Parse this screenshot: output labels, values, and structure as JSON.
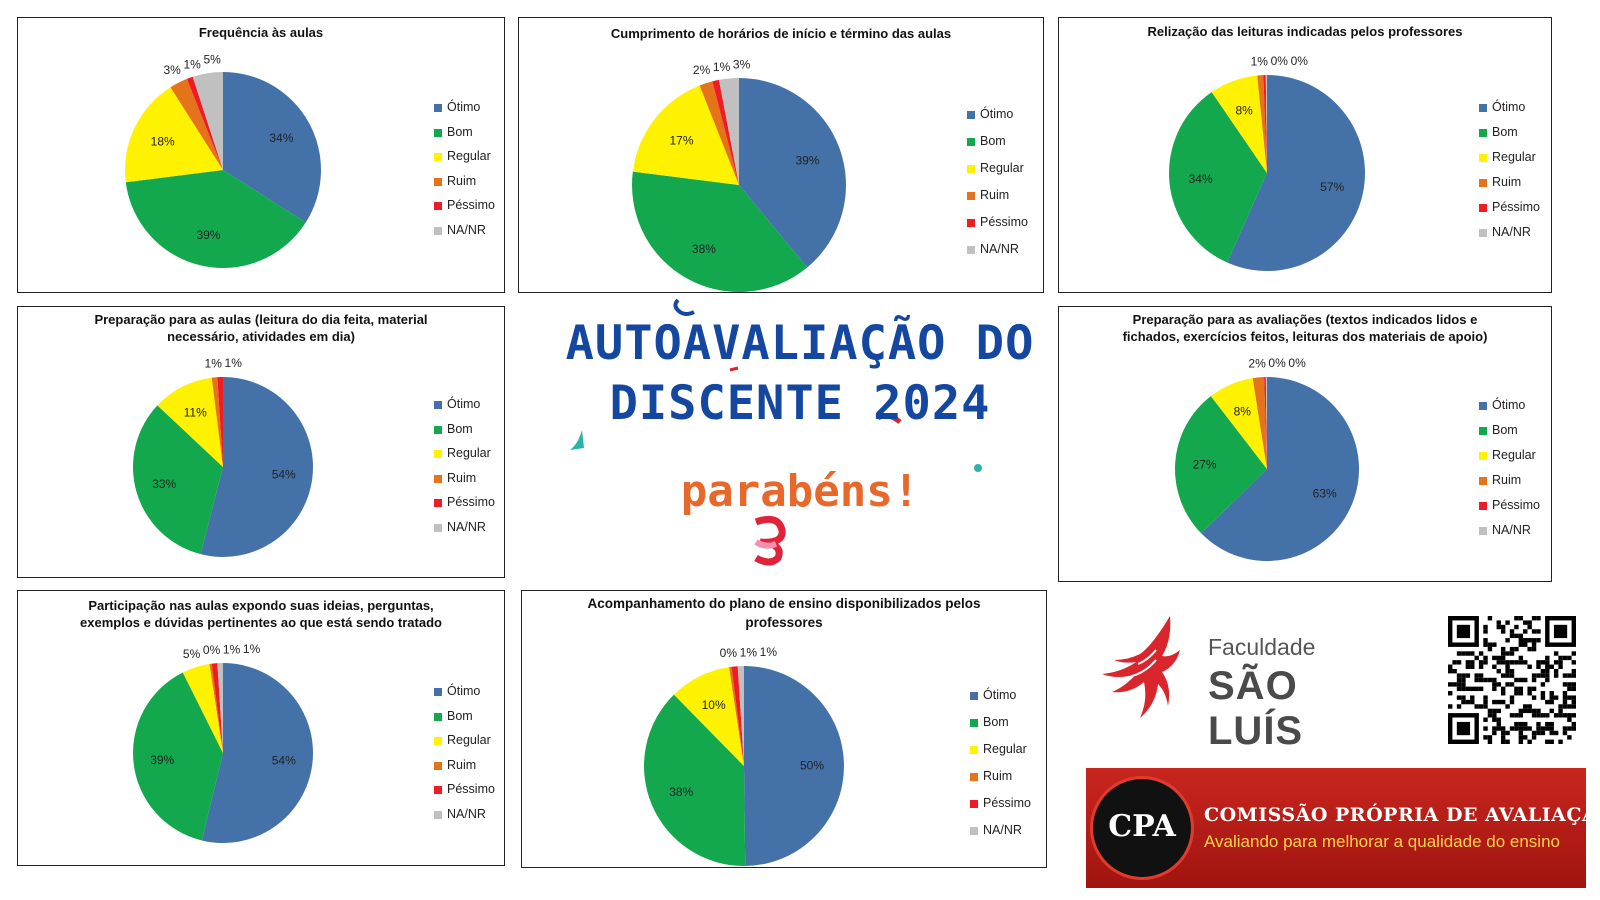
{
  "colors": {
    "otimo": "#4472a8",
    "bom": "#13a84e",
    "regular": "#fff200",
    "ruim": "#e4731b",
    "pessimo": "#ee1c24",
    "na_nr": "#c0c0c0"
  },
  "legend_labels": [
    "Ótimo",
    "Bom",
    "Regular",
    "Ruim",
    "Péssimo",
    "NA/NR"
  ],
  "center": {
    "title_line1": "AUTOAVALIAÇÃO DO",
    "title_line2": "DISCENTE 2024",
    "subtitle": "parabéns!"
  },
  "logo": {
    "line1": "Faculdade",
    "line2": "SÃO LUÍS"
  },
  "cpa": {
    "letters": "CPA",
    "name": "COMISSÃO PRÓPRIA DE AVALIAÇÃO",
    "tagline": "Avaliando para melhorar a qualidade do ensino"
  },
  "chart_data": [
    {
      "type": "pie",
      "title_lines": [
        "Frequência às aulas"
      ],
      "categories": [
        "Ótimo",
        "Bom",
        "Regular",
        "Ruim",
        "Péssimo",
        "NA/NR"
      ],
      "values": [
        34,
        39,
        18,
        3,
        1,
        5
      ],
      "labels": [
        "34%",
        "39%",
        "18%",
        "3%",
        "1%",
        "5%"
      ],
      "legend": "right"
    },
    {
      "type": "pie",
      "title_lines": [
        "Cumprimento de horários de início e término das aulas"
      ],
      "categories": [
        "Ótimo",
        "Bom",
        "Regular",
        "Ruim",
        "Péssimo",
        "NA/NR"
      ],
      "values": [
        39,
        38,
        17,
        2,
        1,
        3
      ],
      "labels": [
        "39%",
        "38%",
        "17%",
        "2%",
        "1%",
        "3%"
      ],
      "legend": "right"
    },
    {
      "type": "pie",
      "title_lines": [
        "Relização das leituras indicadas pelos professores"
      ],
      "categories": [
        "Ótimo",
        "Bom",
        "Regular",
        "Ruim",
        "Péssimo",
        "NA/NR"
      ],
      "values": [
        57,
        34,
        8,
        1,
        0.4,
        0.2
      ],
      "labels": [
        "57%",
        "34%",
        "8%",
        "1%",
        "0%",
        "0%"
      ],
      "legend": "right"
    },
    {
      "type": "pie",
      "title_lines": [
        "Preparação para as aulas (leitura do dia feita, material",
        "necessário, atividades em dia)"
      ],
      "categories": [
        "Ótimo",
        "Bom",
        "Regular",
        "Ruim",
        "Péssimo",
        "NA/NR"
      ],
      "values": [
        54,
        33,
        11,
        1,
        1,
        0
      ],
      "labels": [
        "54%",
        "33%",
        "11%",
        "1%",
        "1%",
        ""
      ],
      "legend": "right"
    },
    {
      "type": "pie",
      "title_lines": [
        "Preparação para as avaliações (textos indicados lidos e",
        "fichados, exercícios feitos, leituras dos materiais de apoio)"
      ],
      "categories": [
        "Ótimo",
        "Bom",
        "Regular",
        "Ruim",
        "Péssimo",
        "NA/NR"
      ],
      "values": [
        63,
        27,
        8,
        2,
        0.3,
        0.2
      ],
      "labels": [
        "63%",
        "27%",
        "8%",
        "2%",
        "0%",
        "0%"
      ],
      "legend": "right"
    },
    {
      "type": "pie",
      "title_lines": [
        "Participação nas aulas expondo suas ideias, perguntas,",
        "exemplos e dúvidas pertinentes ao que está sendo tratado"
      ],
      "categories": [
        "Ótimo",
        "Bom",
        "Regular",
        "Ruim",
        "Péssimo",
        "NA/NR"
      ],
      "values": [
        54,
        39,
        5,
        0.4,
        1,
        1
      ],
      "labels": [
        "54%",
        "39%",
        "5%",
        "0%",
        "1%",
        "1%"
      ],
      "legend": "right"
    },
    {
      "type": "pie",
      "title_lines": [
        "Acompanhamento do plano de ensino disponibilizados pelos",
        "professores"
      ],
      "categories": [
        "Ótimo",
        "Bom",
        "Regular",
        "Ruim",
        "Péssimo",
        "NA/NR"
      ],
      "values": [
        50,
        38,
        10,
        0.4,
        1,
        1
      ],
      "labels": [
        "50%",
        "38%",
        "10%",
        "0%",
        "1%",
        "1%"
      ],
      "legend": "right"
    }
  ]
}
